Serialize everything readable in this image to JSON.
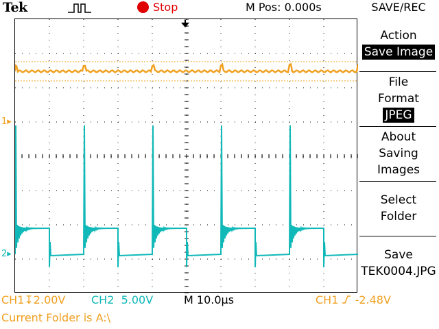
{
  "top": {
    "brand": "Tek",
    "status": "Stop",
    "mpos": "M Pos: 0.000s"
  },
  "menu": {
    "title": "SAVE/REC",
    "action_label": "Action",
    "action_value": "Save Image",
    "format_label_1": "File",
    "format_label_2": "Format",
    "format_value": "JPEG",
    "about_1": "About",
    "about_2": "Saving",
    "about_3": "Images",
    "select_1": "Select",
    "select_2": "Folder",
    "save_1": "Save",
    "save_2": "TEK0004.JPG"
  },
  "readouts": {
    "ch1": "CH1",
    "ch1_scale": "2.00V",
    "ch2": "CH2",
    "ch2_scale": "5.00V",
    "timebase": "M 10.0µs",
    "trigger_source": "CH1",
    "trigger_level": "-2.48V",
    "folder": "Current Folder is A:\\"
  },
  "markers": {
    "ch1": "1",
    "ch2": "2"
  },
  "colors": {
    "ch1": "#f0a020",
    "ch2": "#10b8b8",
    "stop": "#e10000"
  }
}
